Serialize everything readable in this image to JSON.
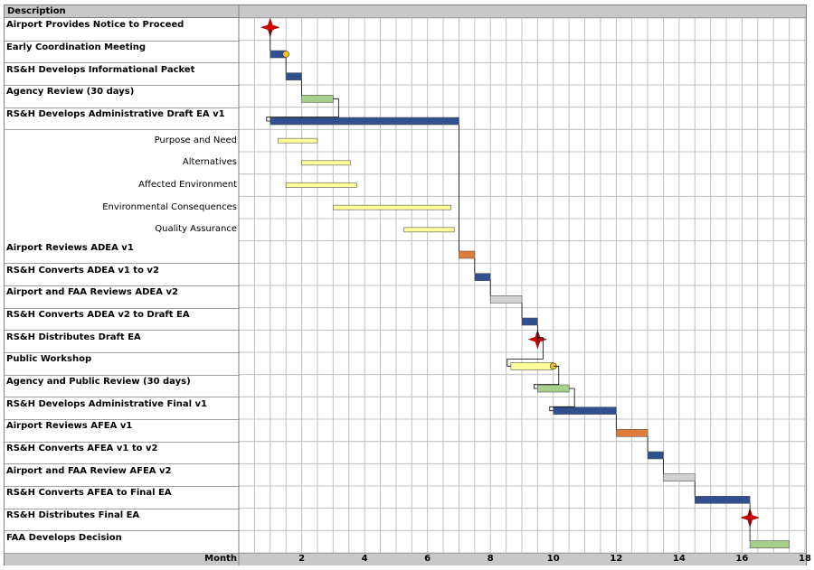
{
  "header": {
    "description_label": "Description"
  },
  "footer": {
    "month_label": "Month"
  },
  "colors": {
    "blue": "#2f4f8f",
    "green": "#a8d08d",
    "yellow": "#ffff99",
    "orange": "#e07b39",
    "gray": "#d0d0d0",
    "milestone_red": "#d40000",
    "circle_yellow": "#f5c518"
  },
  "chart_data": {
    "type": "gantt",
    "xlabel": "Month",
    "xlim": [
      0,
      18
    ],
    "x_ticks": [
      "2",
      "4",
      "6",
      "8",
      "10",
      "12",
      "14",
      "16",
      "18"
    ],
    "tasks": [
      {
        "label": "Airport Provides Notice to Proceed",
        "level": "main",
        "type": "milestone",
        "start": 1.0,
        "end": 1.0
      },
      {
        "label": "Early Coordination Meeting",
        "level": "main",
        "type": "bar",
        "color": "blue",
        "start": 1.0,
        "end": 1.5,
        "end_marker": "circle"
      },
      {
        "label": "RS&H Develops Informational Packet",
        "level": "main",
        "type": "bar",
        "color": "blue",
        "start": 1.5,
        "end": 2.0
      },
      {
        "label": "Agency Review (30 days)",
        "level": "main",
        "type": "bar",
        "color": "green",
        "start": 2.0,
        "end": 3.0
      },
      {
        "label": "RS&H Develops Administrative Draft EA v1",
        "level": "main",
        "type": "bar",
        "color": "blue",
        "start": 1.0,
        "end": 7.0
      },
      {
        "label": "Purpose and Need",
        "level": "sub",
        "type": "bar",
        "color": "yellow",
        "start": 1.25,
        "end": 2.5
      },
      {
        "label": "Alternatives",
        "level": "sub",
        "type": "bar",
        "color": "yellow",
        "start": 2.0,
        "end": 3.55
      },
      {
        "label": "Affected Environment",
        "level": "sub",
        "type": "bar",
        "color": "yellow",
        "start": 1.5,
        "end": 3.75
      },
      {
        "label": "Environmental Consequences",
        "level": "sub",
        "type": "bar",
        "color": "yellow",
        "start": 3.0,
        "end": 6.75
      },
      {
        "label": "Quality Assurance",
        "level": "sub",
        "type": "bar",
        "color": "yellow",
        "start": 5.25,
        "end": 6.85
      },
      {
        "label": "Airport Reviews ADEA v1",
        "level": "main",
        "type": "bar",
        "color": "orange",
        "start": 7.0,
        "end": 7.5
      },
      {
        "label": "RS&H Converts ADEA v1 to v2",
        "level": "main",
        "type": "bar",
        "color": "blue",
        "start": 7.5,
        "end": 8.0
      },
      {
        "label": "Airport and FAA Reviews ADEA v2",
        "level": "main",
        "type": "bar",
        "color": "gray",
        "start": 8.0,
        "end": 9.0
      },
      {
        "label": "RS&H Converts ADEA v2 to Draft EA",
        "level": "main",
        "type": "bar",
        "color": "blue",
        "start": 9.0,
        "end": 9.5
      },
      {
        "label": "RS&H Distributes Draft EA",
        "level": "main",
        "type": "milestone",
        "start": 9.5,
        "end": 9.5
      },
      {
        "label": "Public Workshop",
        "level": "main",
        "type": "bar",
        "color": "yellow",
        "start": 8.65,
        "end": 10.0,
        "end_marker": "circle"
      },
      {
        "label": "Agency and Public Review (30 days)",
        "level": "main",
        "type": "bar",
        "color": "green",
        "start": 9.5,
        "end": 10.5
      },
      {
        "label": "RS&H Develops Administrative Final v1",
        "level": "main",
        "type": "bar",
        "color": "blue",
        "start": 10.0,
        "end": 12.0
      },
      {
        "label": "Airport Reviews AFEA v1",
        "level": "main",
        "type": "bar",
        "color": "orange",
        "start": 12.0,
        "end": 13.0
      },
      {
        "label": "RS&H Converts AFEA v1 to v2",
        "level": "main",
        "type": "bar",
        "color": "blue",
        "start": 13.0,
        "end": 13.5
      },
      {
        "label": "Airport and FAA Review AFEA v2",
        "level": "main",
        "type": "bar",
        "color": "gray",
        "start": 13.5,
        "end": 14.5
      },
      {
        "label": "RS&H Converts AFEA to Final EA",
        "level": "main",
        "type": "bar",
        "color": "blue",
        "start": 14.5,
        "end": 16.25
      },
      {
        "label": "RS&H Distributes Final EA",
        "level": "main",
        "type": "milestone",
        "start": 16.25,
        "end": 16.25
      },
      {
        "label": "FAA Develops Decision",
        "level": "main",
        "type": "bar",
        "color": "green",
        "start": 16.25,
        "end": 17.5
      }
    ],
    "grid": true
  }
}
